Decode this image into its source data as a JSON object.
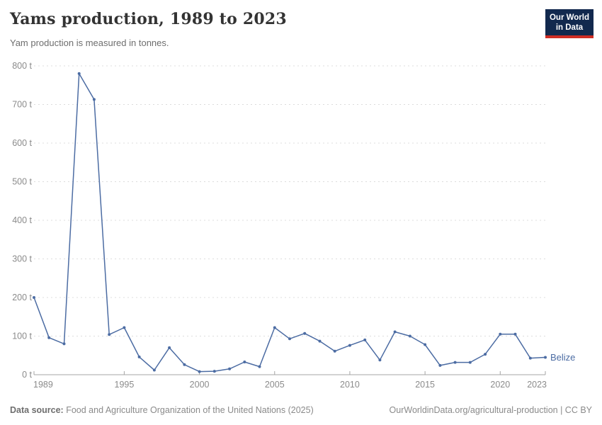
{
  "header": {
    "title": "Yams production, 1989 to 2023",
    "subtitle": "Yam production is measured in tonnes.",
    "logo": {
      "line1": "Our World",
      "line2": "in Data"
    }
  },
  "chart_data": {
    "type": "line",
    "title": "Yams production, 1989 to 2023",
    "ylabel": "",
    "xlabel": "",
    "unit": "t",
    "x": [
      1989,
      1990,
      1991,
      1992,
      1993,
      1994,
      1995,
      1996,
      1997,
      1998,
      1999,
      2000,
      2001,
      2002,
      2003,
      2004,
      2005,
      2006,
      2007,
      2008,
      2009,
      2010,
      2011,
      2012,
      2013,
      2014,
      2015,
      2016,
      2017,
      2018,
      2019,
      2020,
      2021,
      2022,
      2023
    ],
    "series": [
      {
        "name": "Belize",
        "values": [
          200,
          96,
          80,
          780,
          713,
          104,
          122,
          46,
          12,
          70,
          26,
          8,
          9,
          15,
          33,
          21,
          122,
          93,
          107,
          87,
          61,
          76,
          90,
          38,
          111,
          100,
          78,
          24,
          32,
          32,
          53,
          105,
          105,
          43,
          45
        ]
      }
    ],
    "ylim": [
      0,
      800
    ],
    "ytick_interval": 100,
    "yticks": [
      0,
      100,
      200,
      300,
      400,
      500,
      600,
      700,
      800
    ],
    "xticks": [
      1989,
      1995,
      2000,
      2005,
      2010,
      2015,
      2020,
      2023
    ],
    "grid": true,
    "legend_position": "end-of-line",
    "colors": {
      "line": "#4C6CA3",
      "axis_text": "#8b8b8b",
      "gridline": "#dcdcdc",
      "axis_line": "#a5a5a5"
    }
  },
  "footer": {
    "source_label": "Data source:",
    "source_text": "Food and Agriculture Organization of the United Nations (2025)",
    "credit": "OurWorldinData.org/agricultural-production | CC BY"
  }
}
